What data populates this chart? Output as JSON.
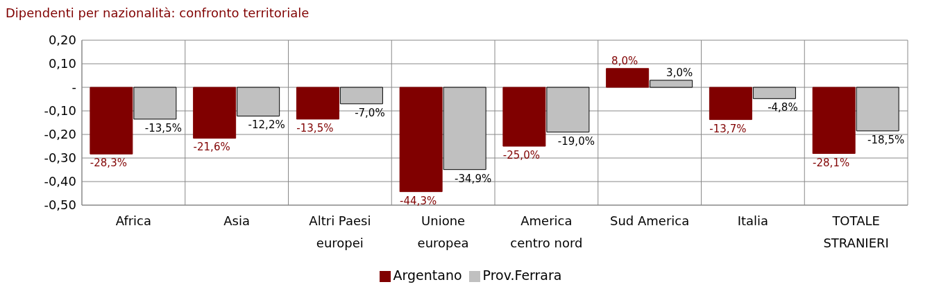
{
  "chart_data": {
    "type": "bar",
    "title": "Dipendenti per nazionalità: confronto territoriale",
    "categories": [
      "Africa",
      "Asia",
      "Altri Paesi europei",
      "Unione europea",
      "America centro nord",
      "Sud America",
      "Italia",
      "TOTALE STRANIERI"
    ],
    "series": [
      {
        "name": "Argentano",
        "color": "#800000",
        "values": [
          -0.283,
          -0.216,
          -0.135,
          -0.443,
          -0.25,
          0.08,
          -0.137,
          -0.281
        ],
        "value_labels": [
          "-28,3%",
          "-21,6%",
          "-13,5%",
          "-44,3%",
          "-25,0%",
          "8,0%",
          "-13,7%",
          "-28,1%"
        ]
      },
      {
        "name": "Prov.Ferrara",
        "color": "#c0c0c0",
        "values": [
          -0.135,
          -0.122,
          -0.07,
          -0.349,
          -0.19,
          0.03,
          -0.048,
          -0.185
        ],
        "value_labels": [
          "-13,5%",
          "-12,2%",
          "-7,0%",
          "-34,9%",
          "-19,0%",
          "3,0%",
          "-4,8%",
          "-18,5%"
        ]
      }
    ],
    "ylim": [
      -0.5,
      0.2
    ],
    "yticks": [
      {
        "value": -0.5,
        "label": "-0,50"
      },
      {
        "value": -0.4,
        "label": "-0,40"
      },
      {
        "value": -0.3,
        "label": "-0,30"
      },
      {
        "value": -0.2,
        "label": "-0,20"
      },
      {
        "value": -0.1,
        "label": "-0,10"
      },
      {
        "value": 0,
        "label": "-"
      },
      {
        "value": 0.1,
        "label": "0,10"
      },
      {
        "value": 0.2,
        "label": "0,20"
      }
    ],
    "grid": true,
    "legend": "bottom"
  }
}
